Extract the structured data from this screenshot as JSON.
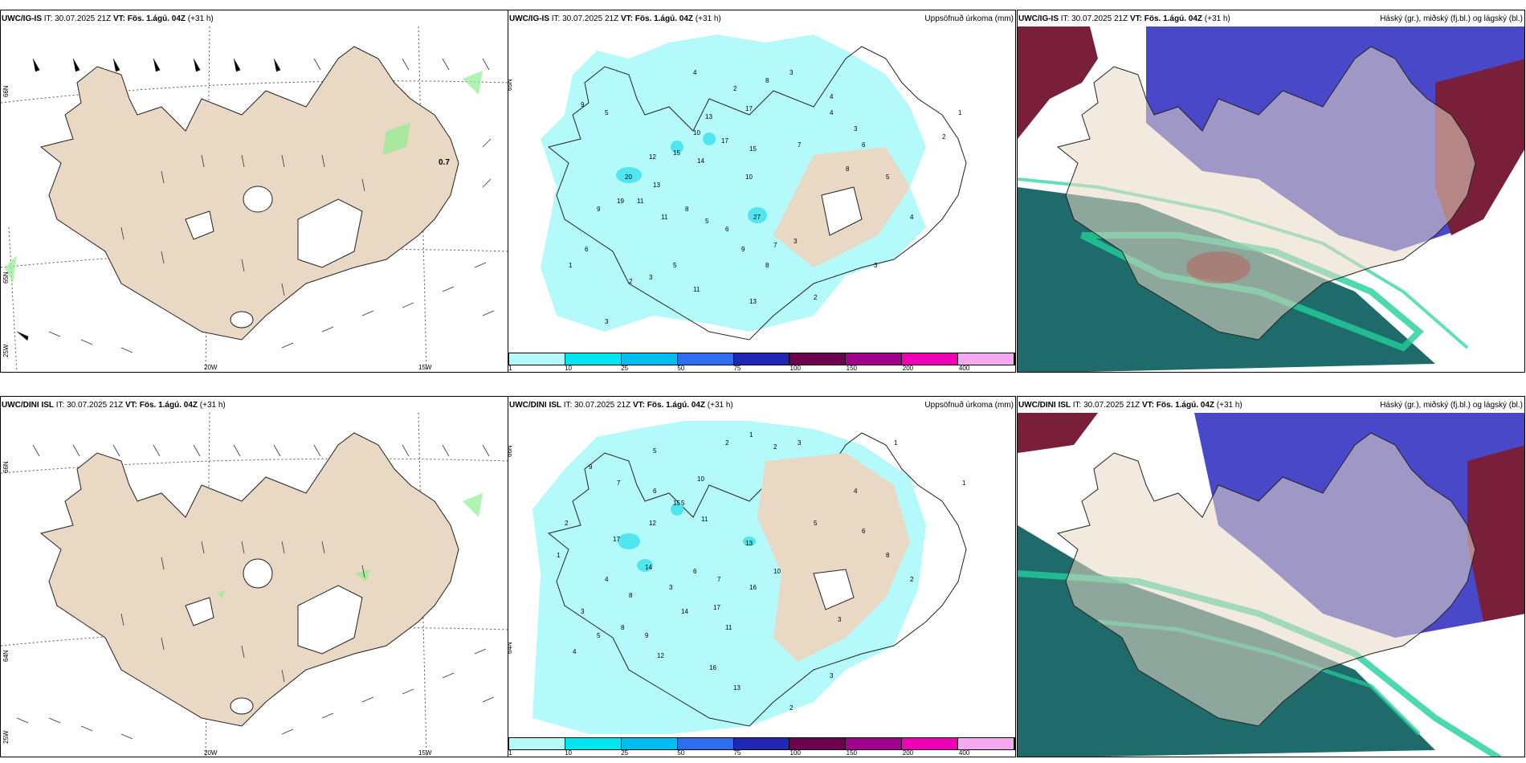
{
  "rows": [
    {
      "model": "UWC/IG-IS",
      "it_label": "IT:",
      "it_value": "30.07.2025 21Z",
      "vt_label": "VT:",
      "vt_value": "Fös. 1.ágú. 04Z",
      "lead": "(+31 h)"
    },
    {
      "model": "UWC/DINI ISL",
      "it_label": "IT:",
      "it_value": "30.07.2025 21Z",
      "vt_label": "VT:",
      "vt_value": "Fös. 1.ágú. 04Z",
      "lead": "(+31 h)"
    }
  ],
  "precip_title": "Uppsöfnuð úrkoma (mm)",
  "cloud_title": "Háský (gr.), miðský (fj.bl.) og lágský (bl.)",
  "wind_gust_label": "0.7",
  "axis_labels": {
    "lon_20w": "20W",
    "lon_15w": "15W",
    "lon_25w": "25W",
    "lat_66n": "66N",
    "lat_64n": "64N",
    "lat_65n": "65N"
  },
  "colorbar": {
    "colors": [
      "#b4fafa",
      "#00e6f0",
      "#00bef0",
      "#2d6ef0",
      "#1e28b4",
      "#6e0050",
      "#a0008c",
      "#f000b4",
      "#f5aaf0"
    ],
    "labels": [
      "1",
      "10",
      "25",
      "50",
      "75",
      "100",
      "150",
      "200",
      "400"
    ]
  },
  "precip_values_top": [
    "4",
    "2",
    "8",
    "3",
    "4",
    "9",
    "5",
    "13",
    "17",
    "10",
    "17",
    "15",
    "14",
    "15",
    "12",
    "20",
    "13",
    "19",
    "11",
    "9",
    "11",
    "8",
    "5",
    "6",
    "27",
    "7",
    "3",
    "8",
    "5",
    "4",
    "3",
    "2",
    "1",
    "6",
    "2",
    "3",
    "5",
    "9",
    "8",
    "10",
    "11",
    "13",
    "4",
    "3",
    "6",
    "7",
    "1",
    "2",
    "3"
  ],
  "precip_values_bottom": [
    "2",
    "1",
    "2",
    "3",
    "5",
    "9",
    "7",
    "6",
    "10",
    "5",
    "11",
    "15",
    "12",
    "17",
    "13",
    "14",
    "16",
    "17",
    "4",
    "8",
    "3",
    "6",
    "7",
    "11",
    "13",
    "10",
    "16",
    "14",
    "2",
    "1",
    "3",
    "4",
    "5",
    "8",
    "9",
    "12",
    "3",
    "2",
    "1",
    "4",
    "6",
    "8",
    "3",
    "5",
    "2",
    "1"
  ],
  "colors": {
    "land": "#e8d8c4",
    "precip_light": "#b4fafa",
    "precip_mid": "#50e6f0",
    "cloud_high": "#7a1f3a",
    "cloud_mid": "#4848c8",
    "cloud_low_teal": "#1f6b6b",
    "cloud_low_green": "#20d09a"
  }
}
